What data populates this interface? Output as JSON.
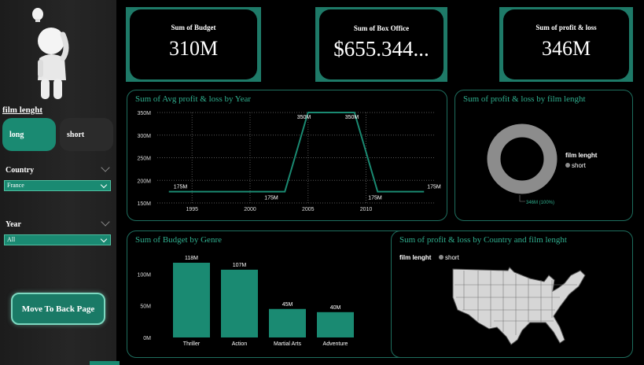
{
  "sidebar": {
    "slicer_title": "film lenght",
    "chips": [
      {
        "label": "long",
        "selected": true
      },
      {
        "label": "short",
        "selected": false
      }
    ],
    "country_label": "Country",
    "country_value": "France",
    "year_label": "Year",
    "year_value": "All",
    "back_button": "Move To Back Page"
  },
  "kpis": [
    {
      "label": "Sum of Budget",
      "value": "310M"
    },
    {
      "label": "Sum of Box Office",
      "value": "$655.344..."
    },
    {
      "label": "Sum of profit & loss",
      "value": "346M"
    }
  ],
  "panels": {
    "line_title": "Sum of Avg profit & loss by Year",
    "donut_title": "Sum of profit & loss by film lenght",
    "bar_title": "Sum of Budget by Genre",
    "map_title": "Sum of profit & loss by Country and film lenght"
  },
  "colors": {
    "accent": "#1a8a72",
    "donut": "#8c8c8c",
    "line": "#1a8a72"
  },
  "chart_data": [
    {
      "type": "line",
      "title": "Sum of Avg profit & loss by Year",
      "x": [
        1993,
        2003,
        2005,
        2009,
        2011,
        2015
      ],
      "y": [
        175,
        175,
        350,
        350,
        175,
        175
      ],
      "point_labels": [
        "175M",
        "175M",
        "350M",
        "350M",
        "175M",
        "175M"
      ],
      "xticks": [
        "1995",
        "2000",
        "2005",
        "2010"
      ],
      "xtick_values": [
        1995,
        2000,
        2005,
        2010
      ],
      "yticks": [
        "350M",
        "300M",
        "250M",
        "200M",
        "150M"
      ],
      "ytick_values": [
        350,
        300,
        250,
        200,
        150
      ],
      "xlim": [
        1992,
        2016
      ],
      "ylim": [
        150,
        350
      ],
      "grid": true
    },
    {
      "type": "pie",
      "title": "Sum of profit & loss by film lenght",
      "legend_title": "film lenght",
      "slices": [
        {
          "name": "short",
          "value": 346,
          "label": "346M (100%)"
        }
      ],
      "legend_position": "right"
    },
    {
      "type": "bar",
      "title": "Sum of Budget by Genre",
      "categories": [
        "Thriller",
        "Action",
        "Martial Arts",
        "Adventure"
      ],
      "values": [
        118,
        107,
        45,
        40
      ],
      "value_labels": [
        "118M",
        "107M",
        "45M",
        "40M"
      ],
      "yticks": [
        "100M",
        "50M",
        "0M"
      ],
      "ytick_values": [
        100,
        50,
        0
      ],
      "ylim": [
        0,
        118
      ]
    },
    {
      "type": "map",
      "title": "Sum of profit & loss by Country and film lenght",
      "legend_title": "film lenght",
      "legend": [
        "short"
      ]
    }
  ]
}
